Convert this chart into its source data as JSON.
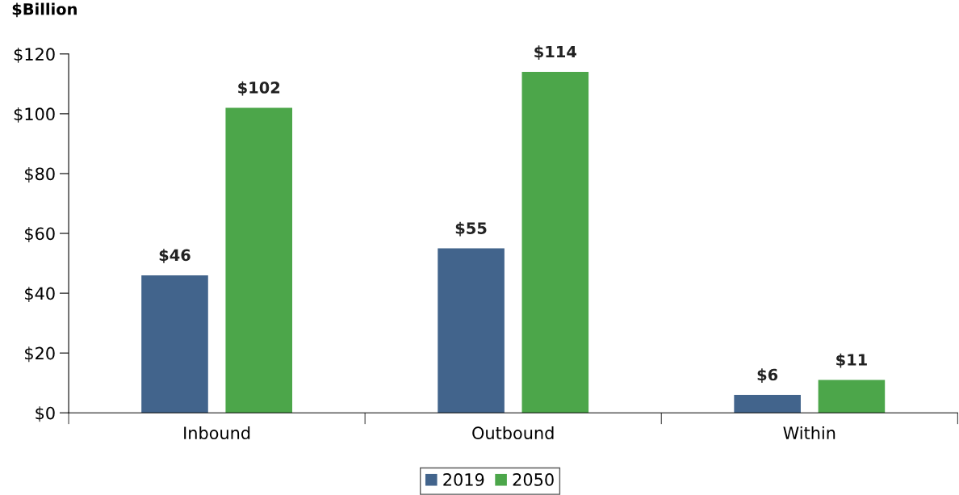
{
  "chart_data": {
    "type": "bar",
    "ylabel": "$Billion",
    "categories": [
      "Inbound",
      "Outbound",
      "Within"
    ],
    "series": [
      {
        "name": "2019",
        "color": "#42648c",
        "values": [
          46,
          55,
          6
        ],
        "value_labels": [
          "$46",
          "$55",
          "$6"
        ]
      },
      {
        "name": "2050",
        "color": "#4ca64a",
        "values": [
          102,
          114,
          11
        ],
        "value_labels": [
          "$102",
          "$114",
          "$11"
        ]
      }
    ],
    "ylim": [
      0,
      120
    ],
    "yticks": [
      {
        "value": 0,
        "label": "$0"
      },
      {
        "value": 20,
        "label": "$20"
      },
      {
        "value": 40,
        "label": "$40"
      },
      {
        "value": 60,
        "label": "$60"
      },
      {
        "value": 80,
        "label": "$80"
      },
      {
        "value": 100,
        "label": "$100"
      },
      {
        "value": 120,
        "label": "$120"
      }
    ],
    "grid": false,
    "legend": "bottom"
  }
}
